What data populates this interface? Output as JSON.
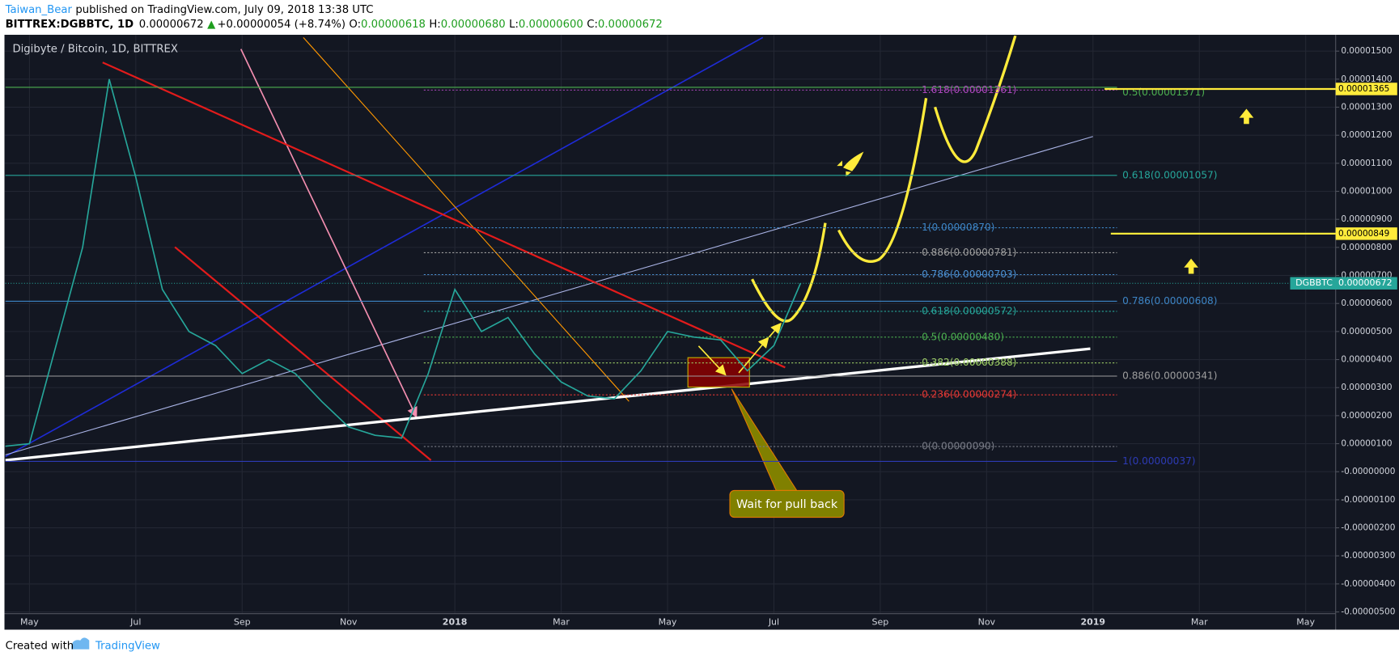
{
  "header": {
    "author": "Taiwan_Bear",
    "published": "published on TradingView.com, July 09, 2018 13:38 UTC",
    "symbol": "BITTREX:DGBBTC, 1D",
    "price": "0.00000672",
    "arrow": "▲",
    "change": "+0.00000054 (+8.74%)",
    "o_label": "O:",
    "open": "0.00000618",
    "h_label": "H:",
    "high": "0.00000680",
    "l_label": "L:",
    "low": "0.00000600",
    "c_label": "C:",
    "close": "0.00000672"
  },
  "chart_data": {
    "type": "line",
    "title": "Digibyte / Bitcoin, 1D, BITTREX",
    "categories": [
      null,
      "May",
      null,
      null,
      null,
      "Jul",
      null,
      null,
      null,
      "Sep",
      null,
      null,
      null,
      "Nov",
      null,
      null,
      null,
      "2018",
      null,
      null,
      null,
      "Mar",
      null,
      null,
      null,
      "May",
      null,
      null,
      null,
      "Jul",
      null,
      null,
      null,
      "Sep",
      null,
      null,
      null,
      "Nov",
      null,
      null,
      null,
      "2019",
      null,
      null,
      null,
      "Mar",
      null,
      null,
      null,
      "May",
      null
    ],
    "series": [
      {
        "name": "DGBBTC",
        "color": "#26a69a",
        "values": [
          9e-07,
          1e-06,
          4.5e-06,
          8e-06,
          1.4e-05,
          1.05e-05,
          6.5e-06,
          5e-06,
          4.5e-06,
          3.5e-06,
          4e-06,
          3.5e-06,
          2.5e-06,
          1.6e-06,
          1.3e-06,
          1.2e-06,
          3.5e-06,
          6.5e-06,
          5e-06,
          5.5e-06,
          4.2e-06,
          3.2e-06,
          2.7e-06,
          2.6e-06,
          3.6e-06,
          5e-06,
          4.8e-06,
          4.7e-06,
          3.6e-06,
          4.5e-06,
          6.72e-06,
          null,
          null,
          null,
          null,
          null,
          null,
          null,
          null,
          null,
          null,
          null,
          null,
          null,
          null,
          null,
          null,
          null,
          null,
          null,
          null
        ]
      }
    ],
    "ylim": [
      -5.06e-06,
      1.555e-05
    ],
    "yticks": [
      {
        "value": 1.5e-05,
        "label": "0.00001500"
      },
      {
        "value": 1.4e-05,
        "label": "0.00001400"
      },
      {
        "value": 1.3e-05,
        "label": "0.00001300"
      },
      {
        "value": 1.2e-05,
        "label": "0.00001200"
      },
      {
        "value": 1.1e-05,
        "label": "0.00001100"
      },
      {
        "value": 1e-05,
        "label": "0.00001000"
      },
      {
        "value": 9e-06,
        "label": "0.00000900"
      },
      {
        "value": 8e-06,
        "label": "0.00000800"
      },
      {
        "value": 7e-06,
        "label": "0.00000700"
      },
      {
        "value": 6e-06,
        "label": "0.00000600"
      },
      {
        "value": 5e-06,
        "label": "0.00000500"
      },
      {
        "value": 4e-06,
        "label": "0.00000400"
      },
      {
        "value": 3e-06,
        "label": "0.00000300"
      },
      {
        "value": 2e-06,
        "label": "0.00000200"
      },
      {
        "value": 1e-06,
        "label": "0.00000100"
      },
      {
        "value": 0,
        "label": "-0.00000000"
      },
      {
        "value": -1e-06,
        "label": "-0.00000100"
      },
      {
        "value": -2e-06,
        "label": "-0.00000200"
      },
      {
        "value": -3e-06,
        "label": "-0.00000300"
      },
      {
        "value": -4e-06,
        "label": "-0.00000400"
      },
      {
        "value": -5e-06,
        "label": "-0.00000500"
      }
    ],
    "grid": true,
    "fib_inner": [
      {
        "value": 1.361e-05,
        "label": "1.618(0.00001361)",
        "color": "#ab47bc"
      },
      {
        "value": 8.7e-06,
        "label": "1(0.00000870)",
        "color": "#3d85c6"
      },
      {
        "value": 7.81e-06,
        "label": "0.886(0.00000781)",
        "color": "#9e9e9e"
      },
      {
        "value": 7.03e-06,
        "label": "0.786(0.00000703)",
        "color": "#4a8fd1"
      },
      {
        "value": 5.72e-06,
        "label": "0.618(0.00000572)",
        "color": "#26a69a"
      },
      {
        "value": 4.8e-06,
        "label": "0.5(0.00000480)",
        "color": "#4caf50"
      },
      {
        "value": 3.88e-06,
        "label": "0.382(0.00000388)",
        "color": "#9ccc65"
      },
      {
        "value": 2.74e-06,
        "label": "0.236(0.00000274)",
        "color": "#e53935"
      },
      {
        "value": 9e-07,
        "label": "0(0.00000090)",
        "color": "#787b86"
      }
    ],
    "fib_outer": [
      {
        "value": 1.371e-05,
        "label": "0.5(0.00001371)",
        "color": "#4caf50"
      },
      {
        "value": 1.057e-05,
        "label": "0.618(0.00001057)",
        "color": "#26a69a"
      },
      {
        "value": 6.08e-06,
        "label": "0.786(0.00000608)",
        "color": "#3d85c6"
      },
      {
        "value": 3.41e-06,
        "label": "0.886(0.00000341)",
        "color": "#9e9e9e"
      },
      {
        "value": 3.7e-07,
        "label": "1(0.00000037)",
        "color": "#2d3bb5"
      }
    ],
    "targets": [
      {
        "value": 1.365e-05,
        "label": "0.00001365",
        "color": "#ffeb3b"
      },
      {
        "value": 8.49e-06,
        "label": "0.00000849",
        "color": "#ffeb3b"
      }
    ],
    "annotation": "Wait for pull back"
  },
  "footer": {
    "created": "Created with",
    "brand": "TradingView"
  }
}
